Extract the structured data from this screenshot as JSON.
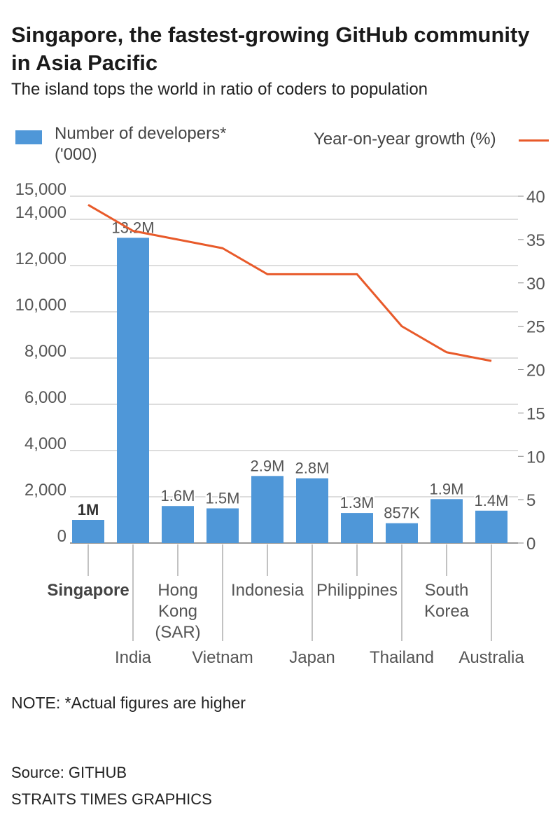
{
  "title": "Singapore, the fastest-growing GitHub community in Asia Pacific",
  "subtitle": "The island tops the world in ratio of coders to population",
  "legend": {
    "bars": "Number of developers*",
    "bars_unit": "('000)",
    "line": "Year-on-year growth (%)"
  },
  "note": "NOTE: *Actual figures are higher",
  "source": "Source: GITHUB",
  "credit": "STRAITS TIMES GRAPHICS",
  "colors": {
    "bar": "#4f97d8",
    "line": "#e85a2a",
    "grid": "#bbbbbb"
  },
  "chart_data": {
    "type": "bar",
    "title": "Singapore, the fastest-growing GitHub community in Asia Pacific",
    "categories": [
      "Singapore",
      "India",
      "Hong Kong (SAR)",
      "Vietnam",
      "Indonesia",
      "Japan",
      "Philippines",
      "Thailand",
      "South Korea",
      "Australia"
    ],
    "category_lines": [
      [
        "Singapore"
      ],
      [
        "India"
      ],
      [
        "Hong",
        "Kong",
        "(SAR)"
      ],
      [
        "Vietnam"
      ],
      [
        "Indonesia"
      ],
      [
        "Japan"
      ],
      [
        "Philippines"
      ],
      [
        "Thailand"
      ],
      [
        "South",
        "Korea"
      ],
      [
        "Australia"
      ]
    ],
    "highlight": "Singapore",
    "series": [
      {
        "name": "Number of developers* ('000)",
        "type": "bar",
        "axis": "left",
        "values": [
          1000,
          13200,
          1600,
          1500,
          2900,
          2800,
          1300,
          857,
          1900,
          1400
        ],
        "labels": [
          "1M",
          "13.2M",
          "1.6M",
          "1.5M",
          "2.9M",
          "2.8M",
          "1.3M",
          "857K",
          "1.9M",
          "1.4M"
        ]
      },
      {
        "name": "Year-on-year growth (%)",
        "type": "line",
        "axis": "right",
        "values": [
          39,
          36,
          35,
          34,
          31,
          31,
          31,
          25,
          22,
          21
        ]
      }
    ],
    "ylim_left": [
      0,
      15000
    ],
    "yticks_left": [
      0,
      2000,
      4000,
      6000,
      8000,
      10000,
      12000,
      14000,
      15000
    ],
    "ytick_labels_left": [
      "0",
      "2,000",
      "4,000",
      "6,000",
      "8,000",
      "10,000",
      "12,000",
      "14,000",
      "15,000"
    ],
    "ylim_right": [
      0,
      40
    ],
    "yticks_right": [
      0,
      5,
      10,
      15,
      20,
      25,
      30,
      35,
      40
    ],
    "ytick_labels_right": [
      "0",
      "5",
      "10",
      "15",
      "20",
      "25",
      "30",
      "35",
      "40"
    ],
    "grid": true
  }
}
